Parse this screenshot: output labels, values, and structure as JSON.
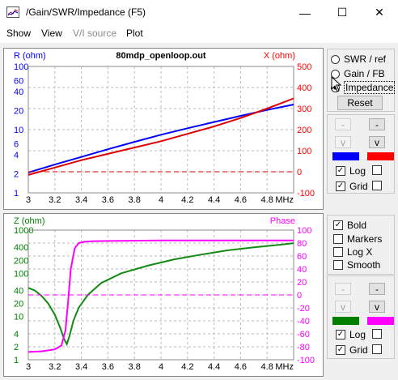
{
  "window": {
    "title": "/Gain/SWR/Impedance (F5)",
    "minimize": "—",
    "maximize": "☐",
    "close": "✕"
  },
  "menu": [
    {
      "label": "Show",
      "enabled": true
    },
    {
      "label": "View",
      "enabled": true
    },
    {
      "label": "V/I source",
      "enabled": false
    },
    {
      "label": "Plot",
      "enabled": true
    }
  ],
  "top_panel": {
    "radios": [
      "SWR / ref",
      "Gain / FB",
      "Impedance"
    ],
    "reset": "Reset",
    "up_left": "-",
    "up_right": "-",
    "down_left": "v",
    "down_right": "v",
    "swatch_left": "#0000ff",
    "swatch_right": "#ff0000",
    "log_label": "Log",
    "log_checked": true,
    "grid_label": "Grid",
    "grid_checked": true
  },
  "bottom_panel": {
    "options": [
      {
        "label": "Bold",
        "checked": true
      },
      {
        "label": "Markers",
        "checked": false
      },
      {
        "label": "Log X",
        "checked": false
      },
      {
        "label": "Smooth",
        "checked": false
      }
    ],
    "up_left": "-",
    "up_right": "-",
    "down_left": "v",
    "down_right": "v",
    "swatch_left": "#008000",
    "swatch_right": "#ff00ff",
    "log_label": "Log",
    "log_checked": true,
    "grid_label": "Grid",
    "grid_checked": true
  },
  "chart_data": [
    {
      "type": "line",
      "title": "80mdp_openloop.out",
      "xlabel": "MHz",
      "ylabel_left": "R (ohm)",
      "ylabel_right": "X (ohm)",
      "xlim": [
        3,
        5
      ],
      "x_ticks": [
        "3",
        "3.2",
        "3.4",
        "3.6",
        "3.8",
        "4",
        "4.2",
        "4.4",
        "4.6",
        "4.8"
      ],
      "left_ticks": [
        "100",
        "60",
        "40",
        "20",
        "10",
        "6",
        "4",
        "2",
        "1"
      ],
      "right_ticks": [
        "500",
        "400",
        "300",
        "200",
        "100",
        "0",
        "-100"
      ],
      "left_scale": "log",
      "left_range": [
        1,
        100
      ],
      "right_range": [
        -100,
        500
      ],
      "grid": true,
      "colors": {
        "left": "#0000ff",
        "right": "#ff0000"
      },
      "series": [
        {
          "axis": "left",
          "color": "#0000ff",
          "x": [
            3,
            3.2,
            3.4,
            3.6,
            3.8,
            4,
            4.2,
            4.4,
            4.6,
            4.8,
            5
          ],
          "y": [
            2.1,
            2.8,
            3.7,
            4.9,
            6.4,
            8.3,
            10.5,
            13.2,
            16.5,
            20.5,
            25
          ]
        },
        {
          "axis": "right",
          "color": "#dd0000",
          "x": [
            3,
            3.2,
            3.4,
            3.6,
            3.8,
            4,
            4.2,
            4.4,
            4.6,
            4.8,
            5
          ],
          "y": [
            -15,
            20,
            55,
            85,
            115,
            145,
            180,
            215,
            255,
            300,
            348
          ]
        },
        {
          "axis": "right",
          "color": "#dd0000",
          "dashed": true,
          "x": [
            3,
            5
          ],
          "y": [
            0,
            0
          ]
        }
      ]
    },
    {
      "type": "line",
      "title": "",
      "xlabel": "MHz",
      "ylabel_left": "Z (ohm)",
      "ylabel_right": "Phase",
      "xlim": [
        3,
        5
      ],
      "x_ticks": [
        "3",
        "3.2",
        "3.4",
        "3.6",
        "3.8",
        "4",
        "4.2",
        "4.4",
        "4.6",
        "4.8"
      ],
      "left_ticks": [
        "1000",
        "400",
        "200",
        "100",
        "40",
        "20",
        "10",
        "4",
        "2",
        "1"
      ],
      "right_ticks": [
        "100",
        "80",
        "60",
        "40",
        "20",
        "0",
        "-20",
        "-40",
        "-60",
        "-80",
        "-100"
      ],
      "left_scale": "log",
      "left_range": [
        1,
        1000
      ],
      "right_range": [
        -100,
        100
      ],
      "grid": true,
      "colors": {
        "left": "#008000",
        "right": "#ff00ff"
      },
      "series": [
        {
          "axis": "left",
          "color": "#138a13",
          "x": [
            3,
            3.05,
            3.1,
            3.15,
            3.2,
            3.24,
            3.27,
            3.29,
            3.31,
            3.34,
            3.38,
            3.45,
            3.55,
            3.7,
            3.9,
            4.1,
            4.3,
            4.5,
            4.7,
            4.9,
            5
          ],
          "y": [
            46,
            40,
            30,
            20,
            11,
            5.5,
            3,
            2.3,
            3.5,
            8,
            16,
            32,
            60,
            100,
            150,
            210,
            270,
            340,
            400,
            460,
            500
          ]
        },
        {
          "axis": "right",
          "color": "#ff00ff",
          "x": [
            3,
            3.1,
            3.2,
            3.25,
            3.28,
            3.3,
            3.32,
            3.35,
            3.38,
            3.42,
            3.5,
            3.7,
            4,
            4.5,
            5
          ],
          "y": [
            -88,
            -87,
            -84,
            -78,
            -55,
            -10,
            40,
            72,
            80,
            82,
            83,
            83.5,
            84,
            84,
            84
          ]
        },
        {
          "axis": "right",
          "color": "#ff00ff",
          "dashed": true,
          "x": [
            3,
            5
          ],
          "y": [
            0,
            0
          ]
        }
      ]
    }
  ]
}
